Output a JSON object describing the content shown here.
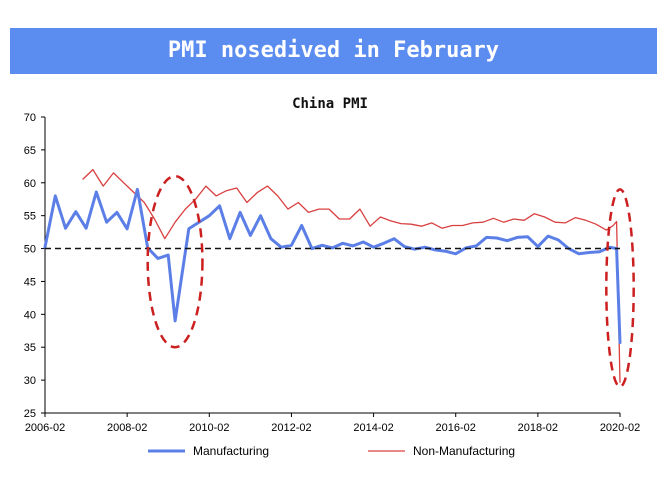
{
  "banner": {
    "title": "PMI nosedived in February"
  },
  "colors": {
    "banner": "#5b8cf0",
    "manufacturing": "#5b7fe6",
    "non_manufacturing": "#d94040",
    "reference": "#111111",
    "highlight": "#cc1f1f"
  },
  "chart_data": {
    "type": "line",
    "title": "China PMI",
    "xlabel": "",
    "ylabel": "",
    "ylim": [
      25,
      70
    ],
    "yticks": [
      "25",
      "30",
      "35",
      "40",
      "45",
      "50",
      "55",
      "60",
      "65",
      "70"
    ],
    "xticks": [
      "2006-02",
      "2008-02",
      "2010-02",
      "2012-02",
      "2014-02",
      "2016-02",
      "2018-02",
      "2020-02"
    ],
    "x_range": [
      "2006-02",
      "2020-02"
    ],
    "reference_line": 50,
    "grid": false,
    "legend_position": "bottom",
    "series": [
      {
        "name": "Manufacturing",
        "points": [
          [
            "2006-02",
            50.2
          ],
          [
            "2006-05",
            58.0
          ],
          [
            "2006-08",
            53.1
          ],
          [
            "2006-11",
            55.6
          ],
          [
            "2007-02",
            53.1
          ],
          [
            "2007-05",
            58.6
          ],
          [
            "2007-08",
            54.0
          ],
          [
            "2007-11",
            55.5
          ],
          [
            "2008-02",
            53.0
          ],
          [
            "2008-05",
            59.0
          ],
          [
            "2008-08",
            50.1
          ],
          [
            "2008-11",
            48.5
          ],
          [
            "2009-02",
            49.0
          ],
          [
            "2009-04",
            39.0
          ],
          [
            "2009-06",
            46.0
          ],
          [
            "2009-08",
            53.0
          ],
          [
            "2009-11",
            54.0
          ],
          [
            "2010-02",
            55.0
          ],
          [
            "2010-05",
            56.5
          ],
          [
            "2010-08",
            51.5
          ],
          [
            "2010-11",
            55.5
          ],
          [
            "2011-02",
            52.0
          ],
          [
            "2011-05",
            55.0
          ],
          [
            "2011-08",
            51.5
          ],
          [
            "2011-11",
            50.2
          ],
          [
            "2012-02",
            50.5
          ],
          [
            "2012-05",
            53.5
          ],
          [
            "2012-08",
            50.0
          ],
          [
            "2012-11",
            50.5
          ],
          [
            "2013-02",
            50.1
          ],
          [
            "2013-05",
            50.8
          ],
          [
            "2013-08",
            50.4
          ],
          [
            "2013-11",
            51.0
          ],
          [
            "2014-02",
            50.2
          ],
          [
            "2014-05",
            50.8
          ],
          [
            "2014-08",
            51.5
          ],
          [
            "2014-11",
            50.3
          ],
          [
            "2015-02",
            49.9
          ],
          [
            "2015-05",
            50.2
          ],
          [
            "2015-08",
            49.8
          ],
          [
            "2015-11",
            49.6
          ],
          [
            "2016-02",
            49.2
          ],
          [
            "2016-05",
            50.1
          ],
          [
            "2016-08",
            50.4
          ],
          [
            "2016-11",
            51.7
          ],
          [
            "2017-02",
            51.6
          ],
          [
            "2017-05",
            51.2
          ],
          [
            "2017-08",
            51.7
          ],
          [
            "2017-11",
            51.8
          ],
          [
            "2018-02",
            50.3
          ],
          [
            "2018-05",
            51.9
          ],
          [
            "2018-08",
            51.3
          ],
          [
            "2018-11",
            50.0
          ],
          [
            "2019-02",
            49.2
          ],
          [
            "2019-05",
            49.4
          ],
          [
            "2019-08",
            49.5
          ],
          [
            "2019-11",
            50.2
          ],
          [
            "2020-01",
            50.0
          ],
          [
            "2020-02",
            35.7
          ]
        ]
      },
      {
        "name": "Non-Manufacturing",
        "points": [
          [
            "2007-01",
            60.5
          ],
          [
            "2007-04",
            62.0
          ],
          [
            "2007-07",
            59.5
          ],
          [
            "2007-10",
            61.5
          ],
          [
            "2008-01",
            60.0
          ],
          [
            "2008-04",
            58.5
          ],
          [
            "2008-07",
            57.0
          ],
          [
            "2008-10",
            54.5
          ],
          [
            "2009-01",
            51.5
          ],
          [
            "2009-04",
            54.0
          ],
          [
            "2009-07",
            56.0
          ],
          [
            "2009-10",
            57.5
          ],
          [
            "2010-01",
            59.5
          ],
          [
            "2010-04",
            58.0
          ],
          [
            "2010-07",
            58.8
          ],
          [
            "2010-10",
            59.2
          ],
          [
            "2011-01",
            57.0
          ],
          [
            "2011-04",
            58.5
          ],
          [
            "2011-07",
            59.5
          ],
          [
            "2011-10",
            58.0
          ],
          [
            "2012-01",
            56.0
          ],
          [
            "2012-04",
            57.0
          ],
          [
            "2012-07",
            55.5
          ],
          [
            "2012-10",
            56.0
          ],
          [
            "2013-01",
            56.0
          ],
          [
            "2013-04",
            54.5
          ],
          [
            "2013-07",
            54.5
          ],
          [
            "2013-10",
            56.0
          ],
          [
            "2014-01",
            53.4
          ],
          [
            "2014-04",
            54.8
          ],
          [
            "2014-07",
            54.2
          ],
          [
            "2014-10",
            53.8
          ],
          [
            "2015-01",
            53.7
          ],
          [
            "2015-04",
            53.4
          ],
          [
            "2015-07",
            53.9
          ],
          [
            "2015-10",
            53.1
          ],
          [
            "2016-01",
            53.5
          ],
          [
            "2016-04",
            53.5
          ],
          [
            "2016-07",
            53.9
          ],
          [
            "2016-10",
            54.0
          ],
          [
            "2017-01",
            54.6
          ],
          [
            "2017-04",
            54.0
          ],
          [
            "2017-07",
            54.5
          ],
          [
            "2017-10",
            54.3
          ],
          [
            "2018-01",
            55.3
          ],
          [
            "2018-04",
            54.8
          ],
          [
            "2018-07",
            54.0
          ],
          [
            "2018-10",
            53.9
          ],
          [
            "2019-01",
            54.7
          ],
          [
            "2019-04",
            54.3
          ],
          [
            "2019-07",
            53.7
          ],
          [
            "2019-10",
            52.8
          ],
          [
            "2019-12",
            53.5
          ],
          [
            "2020-01",
            54.1
          ],
          [
            "2020-02",
            29.6
          ]
        ]
      }
    ],
    "annotations": [
      {
        "type": "ellipse",
        "from": "2008-08",
        "to": "2009-12",
        "ylow": 35,
        "yhigh": 61
      },
      {
        "type": "ellipse",
        "from": "2019-10",
        "to": "2020-06",
        "ylow": 29,
        "yhigh": 59
      }
    ]
  }
}
